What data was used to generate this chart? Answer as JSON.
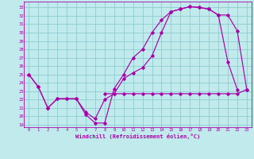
{
  "xlabel": "Windchill (Refroidissement éolien,°C)",
  "bg_color": "#c0eaec",
  "grid_color": "#8eccd0",
  "line_color": "#aa00aa",
  "xlim": [
    -0.5,
    23.5
  ],
  "ylim": [
    18.7,
    33.7
  ],
  "xticks": [
    0,
    1,
    2,
    3,
    4,
    5,
    6,
    7,
    8,
    9,
    10,
    11,
    12,
    13,
    14,
    15,
    16,
    17,
    18,
    19,
    20,
    21,
    22,
    23
  ],
  "yticks": [
    19,
    20,
    21,
    22,
    23,
    24,
    25,
    26,
    27,
    28,
    29,
    30,
    31,
    32,
    33
  ],
  "curve1_x": [
    0,
    1,
    2,
    3,
    4,
    5,
    6,
    7,
    8,
    9,
    10,
    11,
    12,
    13,
    14,
    15,
    16,
    17,
    18,
    19,
    20,
    21,
    22
  ],
  "curve1_y": [
    25.0,
    23.5,
    21.0,
    22.1,
    22.1,
    22.1,
    20.2,
    19.2,
    19.2,
    23.3,
    25.0,
    27.0,
    28.0,
    30.0,
    31.5,
    32.5,
    32.8,
    33.1,
    33.0,
    32.8,
    32.1,
    26.5,
    23.2
  ],
  "curve2_x": [
    0,
    1,
    2,
    3,
    4,
    5,
    6,
    7,
    8,
    9,
    10,
    11,
    12,
    13,
    14,
    15,
    16,
    17,
    18,
    19,
    20,
    21,
    22,
    23
  ],
  "curve2_y": [
    25.0,
    23.5,
    21.0,
    22.1,
    22.1,
    22.1,
    20.5,
    19.7,
    22.0,
    22.7,
    24.5,
    25.2,
    25.8,
    27.2,
    30.0,
    32.5,
    32.8,
    33.1,
    33.0,
    32.8,
    32.1,
    32.1,
    30.2,
    23.2
  ],
  "curve3_x": [
    8,
    9,
    10,
    11,
    12,
    13,
    14,
    15,
    16,
    17,
    18,
    19,
    20,
    21,
    22,
    23
  ],
  "curve3_y": [
    22.7,
    22.7,
    22.7,
    22.7,
    22.7,
    22.7,
    22.7,
    22.7,
    22.7,
    22.7,
    22.7,
    22.7,
    22.7,
    22.7,
    22.7,
    23.2
  ]
}
